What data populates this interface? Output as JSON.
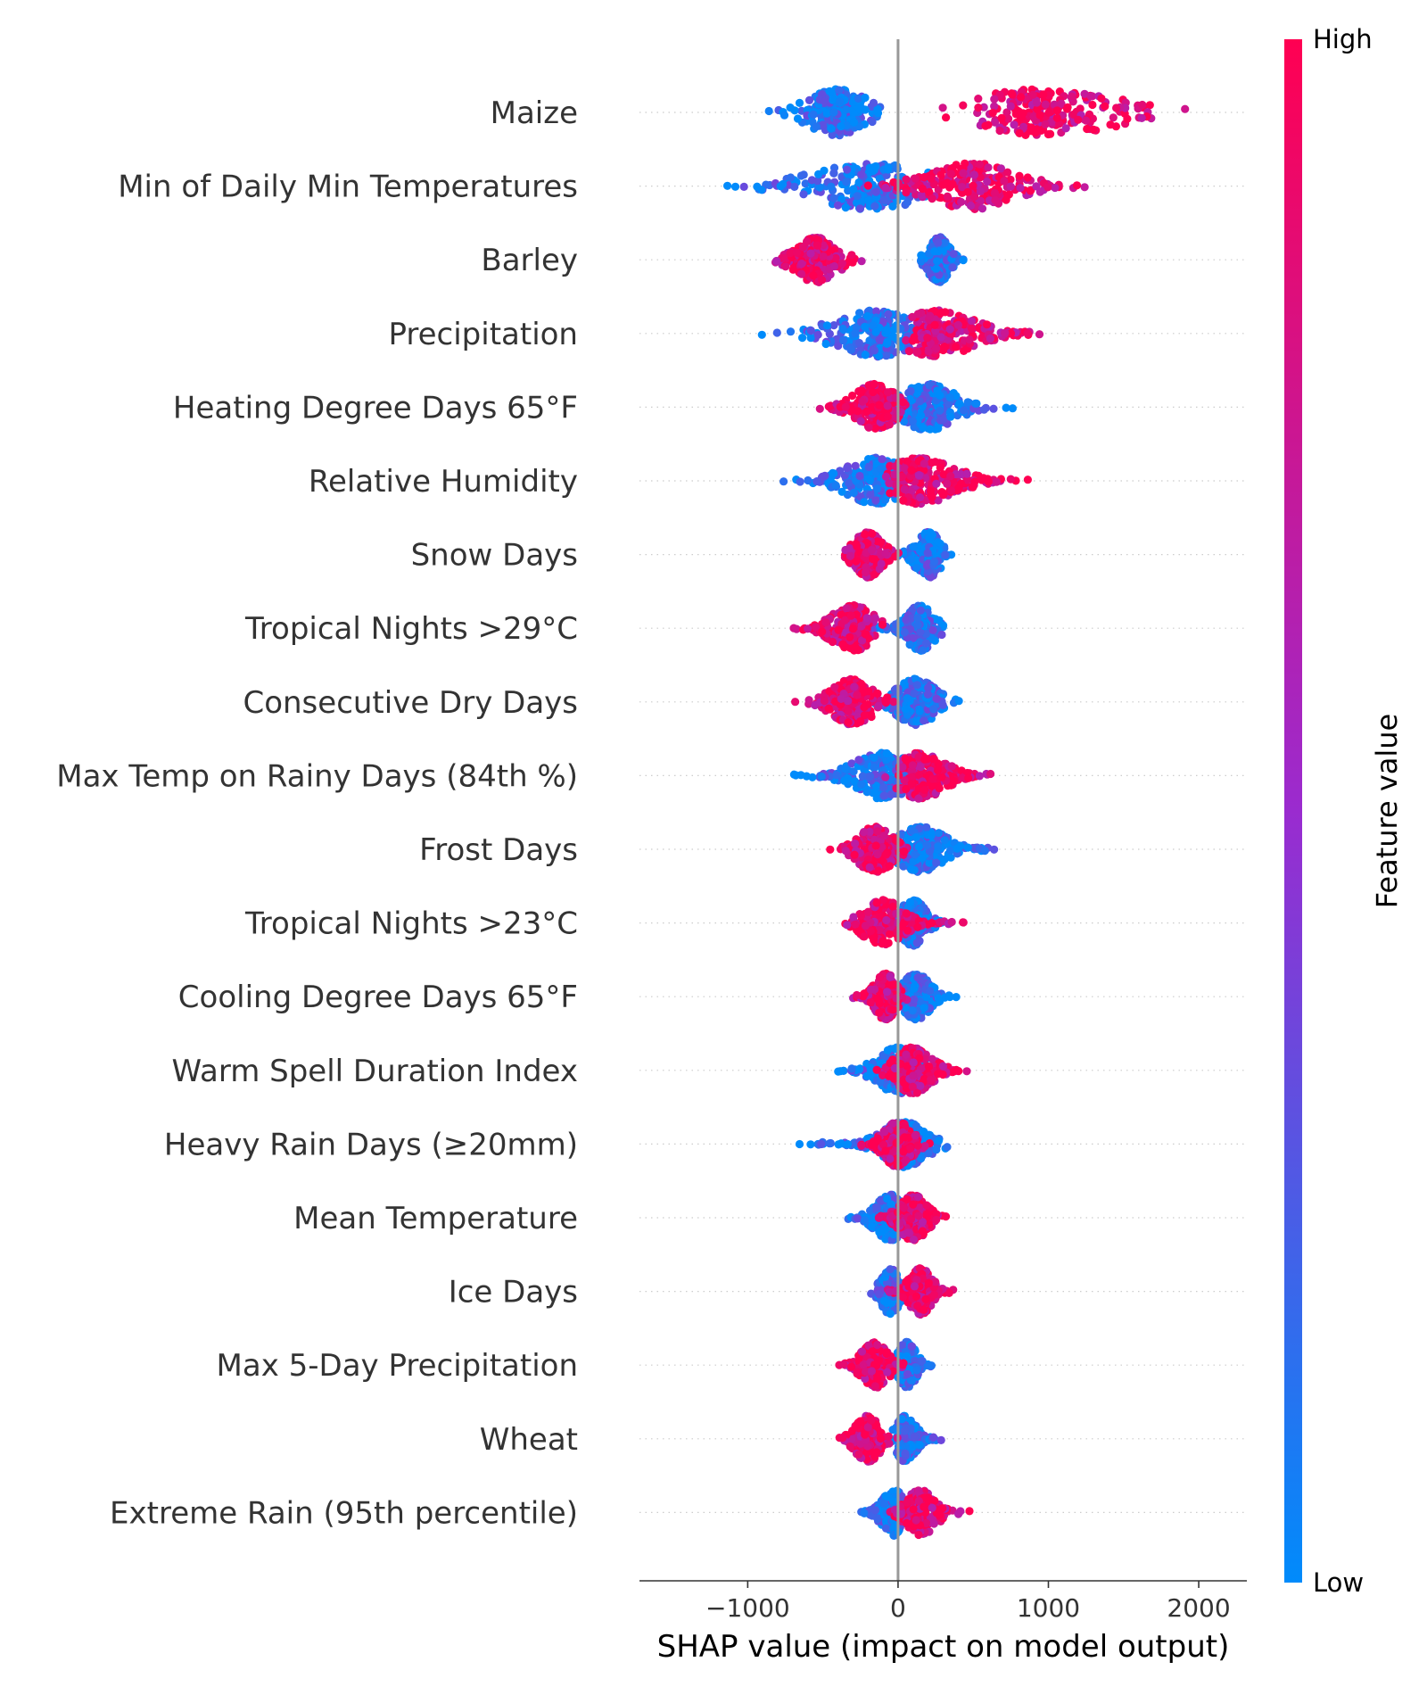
{
  "chart_data": {
    "type": "scatter",
    "subtype": "shap-beeswarm",
    "title": "",
    "xlabel": "SHAP value (impact on model output)",
    "ylabel": "",
    "xlim": [
      -1720,
      2320
    ],
    "xticks": [
      -1000,
      0,
      1000,
      2000
    ],
    "xtick_labels": [
      "−1000",
      "0",
      "1000",
      "2000"
    ],
    "grid": false,
    "colorbar": {
      "title": "Feature value",
      "high_label": "High",
      "low_label": "Low",
      "low_color": "#008bfb",
      "high_color": "#ff0052"
    },
    "features": [
      {
        "name": "Maize",
        "low": {
          "min": -950,
          "max": -30,
          "peak": -400,
          "w": 260
        },
        "high": {
          "min": 170,
          "max": 2140,
          "peak": 950,
          "w": 700
        }
      },
      {
        "name": "Min of Daily Min Temperatures",
        "low": {
          "min": -1530,
          "max": 300,
          "peak": -200,
          "w": 520
        },
        "high": {
          "min": -400,
          "max": 1370,
          "peak": 500,
          "w": 380
        }
      },
      {
        "name": "Barley",
        "low": {
          "min": 110,
          "max": 490,
          "peak": 270,
          "w": 90
        },
        "high": {
          "min": -930,
          "max": -200,
          "peak": -540,
          "w": 180
        }
      },
      {
        "name": "Precipitation",
        "low": {
          "min": -990,
          "max": 300,
          "peak": -150,
          "w": 360
        },
        "high": {
          "min": 0,
          "max": 1360,
          "peak": 250,
          "w": 340
        }
      },
      {
        "name": "Heating Degree Days 65°F",
        "low": {
          "min": -200,
          "max": 860,
          "peak": 200,
          "w": 240
        },
        "high": {
          "min": -630,
          "max": 200,
          "peak": -150,
          "w": 180
        }
      },
      {
        "name": "Relative Humidity",
        "low": {
          "min": -880,
          "max": 150,
          "peak": -150,
          "w": 260
        },
        "high": {
          "min": -200,
          "max": 1090,
          "peak": 150,
          "w": 300
        }
      },
      {
        "name": "Snow Days",
        "low": {
          "min": -100,
          "max": 380,
          "peak": 200,
          "w": 110
        },
        "high": {
          "min": -420,
          "max": 100,
          "peak": -200,
          "w": 120
        }
      },
      {
        "name": "Tropical Nights >29°C",
        "low": {
          "min": -200,
          "max": 360,
          "peak": 150,
          "w": 120
        },
        "high": {
          "min": -800,
          "max": -50,
          "peak": -300,
          "w": 180
        }
      },
      {
        "name": "Consecutive Dry Days",
        "low": {
          "min": -250,
          "max": 500,
          "peak": 120,
          "w": 170
        },
        "high": {
          "min": -720,
          "max": 0,
          "peak": -300,
          "w": 180
        }
      },
      {
        "name": "Max Temp on Rainy Days (84th %)",
        "low": {
          "min": -860,
          "max": 200,
          "peak": -100,
          "w": 250
        },
        "high": {
          "min": -100,
          "max": 780,
          "peak": 150,
          "w": 210
        }
      },
      {
        "name": "Frost Days",
        "low": {
          "min": -150,
          "max": 740,
          "peak": 150,
          "w": 210
        },
        "high": {
          "min": -500,
          "max": 200,
          "peak": -150,
          "w": 160
        }
      },
      {
        "name": "Tropical Nights >23°C",
        "low": {
          "min": -100,
          "max": 380,
          "peak": 100,
          "w": 120
        },
        "high": {
          "min": -450,
          "max": 540,
          "peak": -100,
          "w": 170
        }
      },
      {
        "name": "Cooling Degree Days 65°F",
        "low": {
          "min": -100,
          "max": 420,
          "peak": 120,
          "w": 120
        },
        "high": {
          "min": -360,
          "max": 100,
          "peak": -80,
          "w": 100
        }
      },
      {
        "name": "Warm Spell Duration Index",
        "low": {
          "min": -550,
          "max": 300,
          "peak": 0,
          "w": 180
        },
        "high": {
          "min": -200,
          "max": 510,
          "peak": 100,
          "w": 160
        }
      },
      {
        "name": "Heavy Rain Days (≥20mm)",
        "low": {
          "min": -760,
          "max": 400,
          "peak": 50,
          "w": 200
        },
        "high": {
          "min": -300,
          "max": 250,
          "peak": 0,
          "w": 120
        }
      },
      {
        "name": "Mean Temperature",
        "low": {
          "min": -370,
          "max": 200,
          "peak": -50,
          "w": 130
        },
        "high": {
          "min": -200,
          "max": 370,
          "peak": 100,
          "w": 120
        }
      },
      {
        "name": "Ice Days",
        "low": {
          "min": -240,
          "max": 150,
          "peak": -50,
          "w": 80
        },
        "high": {
          "min": -100,
          "max": 400,
          "peak": 150,
          "w": 100
        }
      },
      {
        "name": "Max 5-Day Precipitation",
        "low": {
          "min": -50,
          "max": 260,
          "peak": 60,
          "w": 80
        },
        "high": {
          "min": -440,
          "max": 100,
          "peak": -150,
          "w": 120
        }
      },
      {
        "name": "Wheat",
        "low": {
          "min": -50,
          "max": 340,
          "peak": 50,
          "w": 90
        },
        "high": {
          "min": -460,
          "max": 30,
          "peak": -200,
          "w": 110
        }
      },
      {
        "name": "Extreme Rain (95th percentile)",
        "low": {
          "min": -350,
          "max": 100,
          "peak": -30,
          "w": 100
        },
        "high": {
          "min": -100,
          "max": 490,
          "peak": 150,
          "w": 130
        }
      }
    ]
  }
}
